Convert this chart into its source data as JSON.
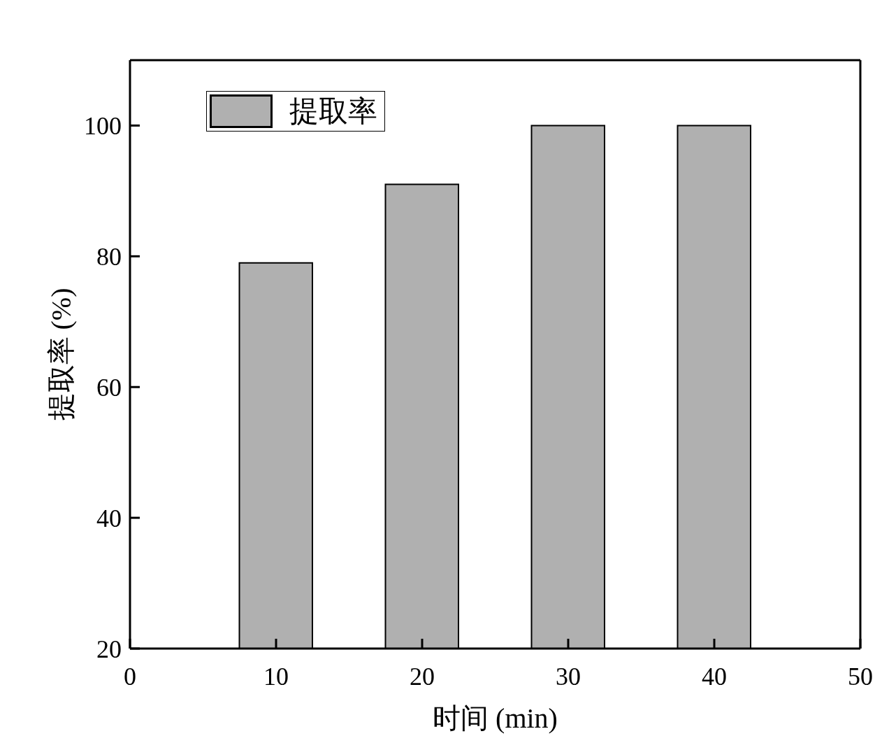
{
  "chart_data": {
    "type": "bar",
    "xlabel": "时间 (min)",
    "ylabel": "提取率 (%)",
    "x": [
      10,
      20,
      30,
      40
    ],
    "series": [
      {
        "name": "提取率",
        "color": "#b0b0b0",
        "values": [
          79,
          91,
          100,
          100
        ]
      }
    ],
    "xlim": [
      0,
      50
    ],
    "xticks": [
      0,
      10,
      20,
      30,
      40,
      50
    ],
    "ylim": [
      20,
      110
    ],
    "yticks": [
      20,
      40,
      60,
      80,
      100
    ],
    "legend": "top left"
  }
}
